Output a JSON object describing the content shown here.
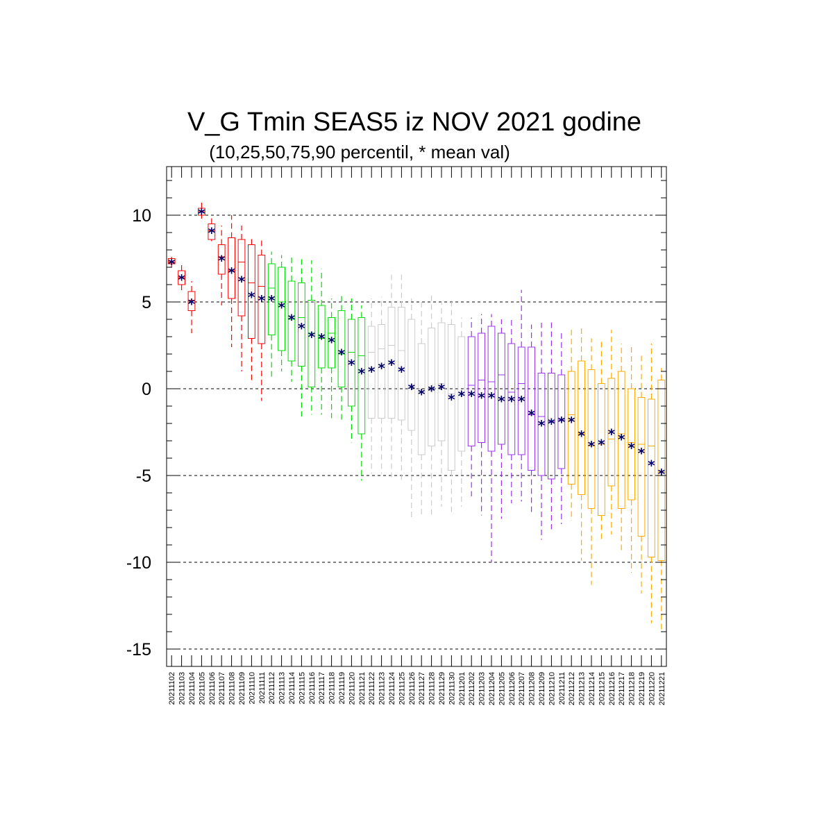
{
  "chart_data": {
    "type": "box",
    "title": "V_G Tmin SEAS5 iz NOV 2021 godine",
    "subtitle": "(10,25,50,75,90 percentil, * mean val)",
    "xlabel": "",
    "ylabel": "",
    "ylim": [
      -16,
      12.8
    ],
    "yticks": [
      -15,
      -10,
      -5,
      0,
      5,
      10
    ],
    "ytick_labels": [
      "-15",
      "-10",
      "-5",
      "0",
      "5",
      "10"
    ],
    "grid": "dashed horizontal at major y ticks",
    "mean_marker_color": "#000066",
    "categories": [
      "20211102",
      "20211103",
      "20211104",
      "20211105",
      "20211106",
      "20211107",
      "20211108",
      "20211109",
      "20211110",
      "20211111",
      "20211112",
      "20211113",
      "20211114",
      "20211115",
      "20211116",
      "20211117",
      "20211118",
      "20211119",
      "20211120",
      "20211121",
      "20211122",
      "20211123",
      "20211124",
      "20211125",
      "20211126",
      "20211127",
      "20211128",
      "20211129",
      "20211130",
      "20211201",
      "20211202",
      "20211203",
      "20211204",
      "20211205",
      "20211206",
      "20211207",
      "20211208",
      "20211209",
      "20211210",
      "20211211",
      "20211212",
      "20211213",
      "20211214",
      "20211215",
      "20211216",
      "20211217",
      "20211218",
      "20211219",
      "20211220",
      "20211221"
    ],
    "groups": [
      {
        "color": "#ff0000",
        "from": 0,
        "to": 9
      },
      {
        "color": "#00dd00",
        "from": 10,
        "to": 19
      },
      {
        "color": "#cccccc",
        "from": 20,
        "to": 29
      },
      {
        "color": "#9933ee",
        "from": 30,
        "to": 39
      },
      {
        "color": "#ffaa00",
        "from": 40,
        "to": 49
      }
    ],
    "boxes": [
      {
        "p10": 7.0,
        "p25": 7.2,
        "p50": 7.3,
        "p75": 7.5,
        "p90": 7.6,
        "mean": 7.3
      },
      {
        "p10": 5.5,
        "p25": 6.0,
        "p50": 6.4,
        "p75": 6.8,
        "p90": 7.2,
        "mean": 6.4
      },
      {
        "p10": 3.2,
        "p25": 4.5,
        "p50": 5.1,
        "p75": 5.6,
        "p90": 6.2,
        "mean": 5.0
      },
      {
        "p10": 9.8,
        "p25": 10.0,
        "p50": 10.2,
        "p75": 10.4,
        "p90": 10.8,
        "mean": 10.2
      },
      {
        "p10": 8.5,
        "p25": 8.6,
        "p50": 9.1,
        "p75": 9.5,
        "p90": 10.0,
        "mean": 9.1
      },
      {
        "p10": 4.8,
        "p25": 6.6,
        "p50": 7.6,
        "p75": 8.3,
        "p90": 9.4,
        "mean": 7.5
      },
      {
        "p10": 2.4,
        "p25": 5.2,
        "p50": 6.8,
        "p75": 8.7,
        "p90": 10.0,
        "mean": 6.8
      },
      {
        "p10": 1.0,
        "p25": 4.2,
        "p50": 7.3,
        "p75": 8.6,
        "p90": 9.4,
        "mean": 6.3
      },
      {
        "p10": 0.4,
        "p25": 2.9,
        "p50": 6.1,
        "p75": 8.3,
        "p90": 8.8,
        "mean": 5.4
      },
      {
        "p10": -0.7,
        "p25": 2.6,
        "p50": 5.9,
        "p75": 7.7,
        "p90": 8.6,
        "mean": 5.2
      },
      {
        "p10": 0.6,
        "p25": 3.1,
        "p50": 5.8,
        "p75": 7.2,
        "p90": 7.9,
        "mean": 5.2
      },
      {
        "p10": 1.0,
        "p25": 2.2,
        "p50": 5.0,
        "p75": 7.0,
        "p90": 7.7,
        "mean": 4.8
      },
      {
        "p10": 0.4,
        "p25": 1.6,
        "p50": 4.0,
        "p75": 6.2,
        "p90": 7.6,
        "mean": 4.1
      },
      {
        "p10": -1.6,
        "p25": 1.3,
        "p50": 4.1,
        "p75": 6.1,
        "p90": 7.6,
        "mean": 3.6
      },
      {
        "p10": -1.5,
        "p25": 0.1,
        "p50": 3.2,
        "p75": 5.1,
        "p90": 7.4,
        "mean": 3.1
      },
      {
        "p10": -1.5,
        "p25": 1.2,
        "p50": 2.9,
        "p75": 4.8,
        "p90": 6.9,
        "mean": 3.0
      },
      {
        "p10": -1.7,
        "p25": 1.2,
        "p50": 3.2,
        "p75": 4.1,
        "p90": 5.2,
        "mean": 2.8
      },
      {
        "p10": -1.8,
        "p25": 0.1,
        "p50": 2.0,
        "p75": 4.5,
        "p90": 5.5,
        "mean": 2.1
      },
      {
        "p10": -3.1,
        "p25": -1.0,
        "p50": 2.1,
        "p75": 4.0,
        "p90": 5.2,
        "mean": 1.5
      },
      {
        "p10": -5.3,
        "p25": -2.6,
        "p50": 1.9,
        "p75": 4.1,
        "p90": 4.8,
        "mean": 1.0
      },
      {
        "p10": -4.9,
        "p25": -1.7,
        "p50": 2.1,
        "p75": 3.6,
        "p90": 5.2,
        "mean": 1.1
      },
      {
        "p10": -4.9,
        "p25": -1.7,
        "p50": 2.3,
        "p75": 3.7,
        "p90": 5.3,
        "mean": 1.3
      },
      {
        "p10": -5.1,
        "p25": -1.7,
        "p50": 2.5,
        "p75": 4.7,
        "p90": 6.8,
        "mean": 1.5
      },
      {
        "p10": -5.3,
        "p25": -1.8,
        "p50": 2.2,
        "p75": 4.7,
        "p90": 6.7,
        "mean": 1.1
      },
      {
        "p10": -7.6,
        "p25": -2.4,
        "p50": 0.2,
        "p75": 4.0,
        "p90": 5.2,
        "mean": 0.1
      },
      {
        "p10": -7.3,
        "p25": -3.8,
        "p50": -0.2,
        "p75": 2.6,
        "p90": 5.1,
        "mean": -0.2
      },
      {
        "p10": -7.4,
        "p25": -3.3,
        "p50": -0.1,
        "p75": 3.5,
        "p90": 5.5,
        "mean": 0.0
      },
      {
        "p10": -6.8,
        "p25": -3.0,
        "p50": 0.3,
        "p75": 3.8,
        "p90": 5.0,
        "mean": 0.1
      },
      {
        "p10": -7.2,
        "p25": -4.7,
        "p50": -0.3,
        "p75": 3.7,
        "p90": 5.0,
        "mean": -0.5
      },
      {
        "p10": -6.8,
        "p25": -3.6,
        "p50": -0.4,
        "p75": 3.0,
        "p90": 4.1,
        "mean": -0.3
      },
      {
        "p10": -6.2,
        "p25": -3.3,
        "p50": 0.2,
        "p75": 3.0,
        "p90": 4.1,
        "mean": -0.3
      },
      {
        "p10": -7.3,
        "p25": -3.1,
        "p50": 0.5,
        "p75": 3.2,
        "p90": 4.3,
        "mean": -0.4
      },
      {
        "p10": -10.0,
        "p25": -3.6,
        "p50": 0.4,
        "p75": 3.6,
        "p90": 4.3,
        "mean": -0.4
      },
      {
        "p10": -7.5,
        "p25": -3.2,
        "p50": 0.8,
        "p75": 3.2,
        "p90": 4.0,
        "mean": -0.6
      },
      {
        "p10": -6.6,
        "p25": -3.8,
        "p50": -0.2,
        "p75": 2.6,
        "p90": 4.0,
        "mean": -0.6
      },
      {
        "p10": -6.5,
        "p25": -3.8,
        "p50": 0.3,
        "p75": 2.4,
        "p90": 5.7,
        "mean": -0.6
      },
      {
        "p10": -7.2,
        "p25": -4.7,
        "p50": -1.5,
        "p75": 2.4,
        "p90": 3.7,
        "mean": -1.4
      },
      {
        "p10": -8.7,
        "p25": -5.0,
        "p50": -1.6,
        "p75": 0.9,
        "p90": 3.8,
        "mean": -2.0
      },
      {
        "p10": -8.1,
        "p25": -5.2,
        "p50": -1.9,
        "p75": 0.9,
        "p90": 3.9,
        "mean": -1.9
      },
      {
        "p10": -7.8,
        "p25": -4.6,
        "p50": -1.8,
        "p75": 0.8,
        "p90": 3.3,
        "mean": -1.8
      },
      {
        "p10": -7.6,
        "p25": -5.5,
        "p50": -1.5,
        "p75": 1.0,
        "p90": 3.5,
        "mean": -1.8
      },
      {
        "p10": -9.9,
        "p25": -6.1,
        "p50": -2.6,
        "p75": 1.6,
        "p90": 3.6,
        "mean": -2.6
      },
      {
        "p10": -11.3,
        "p25": -6.9,
        "p50": -3.3,
        "p75": 1.1,
        "p90": 2.9,
        "mean": -3.2
      },
      {
        "p10": -8.7,
        "p25": -7.3,
        "p50": -3.2,
        "p75": 0.3,
        "p90": 2.7,
        "mean": -3.1
      },
      {
        "p10": -8.4,
        "p25": -5.6,
        "p50": -2.9,
        "p75": 0.6,
        "p90": 3.4,
        "mean": -2.5
      },
      {
        "p10": -9.4,
        "p25": -6.9,
        "p50": -2.6,
        "p75": 1.0,
        "p90": 2.6,
        "mean": -2.8
      },
      {
        "p10": -10.6,
        "p25": -6.4,
        "p50": -3.1,
        "p75": 0.0,
        "p90": 2.5,
        "mean": -3.3
      },
      {
        "p10": -11.8,
        "p25": -8.5,
        "p50": -3.2,
        "p75": -0.5,
        "p90": 2.1,
        "mean": -3.6
      },
      {
        "p10": -13.5,
        "p25": -9.7,
        "p50": -3.3,
        "p75": -0.6,
        "p90": 2.6,
        "mean": -4.3
      },
      {
        "p10": -14.0,
        "p25": -9.9,
        "p50": -4.8,
        "p75": 0.5,
        "p90": 1.2,
        "mean": -4.8
      }
    ]
  }
}
